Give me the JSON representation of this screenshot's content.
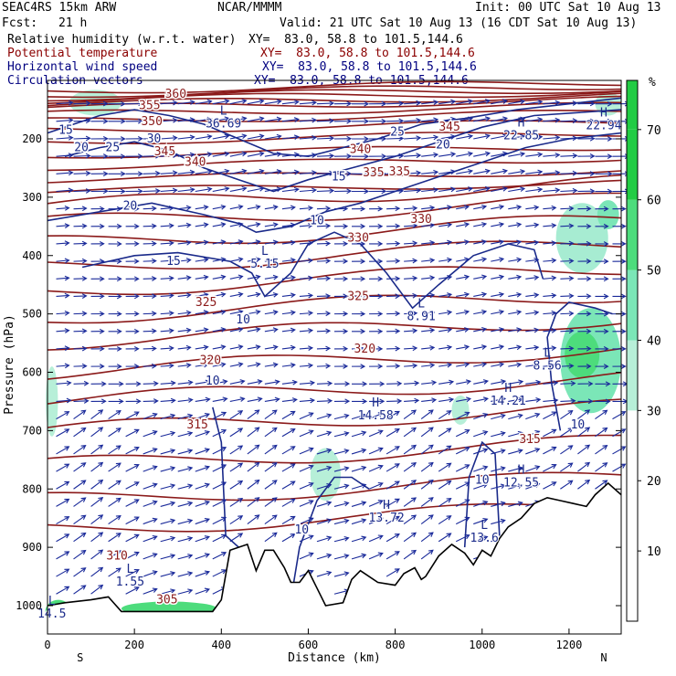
{
  "header": {
    "model": "SEAC4RS 15km ARW",
    "org": "NCAR/MMMM",
    "init": "Init: 00 UTC Sat 10 Aug 13",
    "fcst_label": "Fcst:",
    "fcst_value": "21 h",
    "valid": "Valid: 21 UTC Sat 10 Aug 13 (16 CDT Sat 10 Aug 13)",
    "fields": [
      {
        "name": "Relative humidity (w.r.t. water)",
        "xy": "XY=  83.0, 58.8 to 101.5,144.6",
        "color": "#000000"
      },
      {
        "name": "Potential temperature",
        "xy": "XY=  83.0, 58.8 to 101.5,144.6",
        "color": "#8b0000"
      },
      {
        "name": "Horizontal wind speed",
        "xy": "XY=  83.0, 58.8 to 101.5,144.6",
        "color": "#000080"
      },
      {
        "name": "Circulation vectors",
        "xy": "XY=  83.0, 58.8 to 101.5,144.6",
        "color": "#000080"
      }
    ]
  },
  "chart_data": {
    "type": "heatmap",
    "xlabel": "Distance (km)",
    "ylabel": "Pressure (hPa)",
    "xlim": [
      0,
      1320
    ],
    "ylim": [
      1050,
      100
    ],
    "x_ticks": [
      0,
      200,
      400,
      600,
      800,
      1000,
      1200
    ],
    "y_ticks": [
      200,
      300,
      400,
      500,
      600,
      700,
      800,
      900,
      1000
    ],
    "x_end_labels": {
      "left": "S",
      "right": "N"
    },
    "colorbar": {
      "unit": "%",
      "levels": [
        10,
        20,
        30,
        40,
        50,
        60,
        70
      ],
      "colors": [
        "#ffffff",
        "#ffffff",
        "#ffffff",
        "#b7efd8",
        "#7be6b7",
        "#4ddc7c",
        "#22cc44"
      ]
    },
    "theta_labels": [
      {
        "x": 295,
        "p": 123,
        "text": "360"
      },
      {
        "x": 235,
        "p": 143,
        "text": "355"
      },
      {
        "x": 240,
        "p": 170,
        "text": "350"
      },
      {
        "x": 270,
        "p": 222,
        "text": "345"
      },
      {
        "x": 340,
        "p": 240,
        "text": "340"
      },
      {
        "x": 720,
        "p": 218,
        "text": "340"
      },
      {
        "x": 750,
        "p": 258,
        "text": "335"
      },
      {
        "x": 810,
        "p": 256,
        "text": "335"
      },
      {
        "x": 860,
        "p": 338,
        "text": "330"
      },
      {
        "x": 715,
        "p": 370,
        "text": "330"
      },
      {
        "x": 365,
        "p": 480,
        "text": "325"
      },
      {
        "x": 715,
        "p": 470,
        "text": "325"
      },
      {
        "x": 375,
        "p": 580,
        "text": "320"
      },
      {
        "x": 730,
        "p": 560,
        "text": "320"
      },
      {
        "x": 345,
        "p": 690,
        "text": "315"
      },
      {
        "x": 1110,
        "p": 715,
        "text": "315"
      },
      {
        "x": 160,
        "p": 915,
        "text": "310"
      },
      {
        "x": 275,
        "p": 990,
        "text": "305"
      },
      {
        "x": 925,
        "p": 180,
        "text": "345"
      }
    ],
    "wind_labels": [
      {
        "x": 42,
        "p": 185,
        "text": "15"
      },
      {
        "x": 78,
        "p": 215,
        "text": "20"
      },
      {
        "x": 150,
        "p": 215,
        "text": "25"
      },
      {
        "x": 245,
        "p": 200,
        "text": "30"
      },
      {
        "x": 190,
        "p": 315,
        "text": "20"
      },
      {
        "x": 290,
        "p": 410,
        "text": "15"
      },
      {
        "x": 805,
        "p": 188,
        "text": "25"
      },
      {
        "x": 910,
        "p": 210,
        "text": "20"
      },
      {
        "x": 670,
        "p": 265,
        "text": "15"
      },
      {
        "x": 620,
        "p": 340,
        "text": "10"
      },
      {
        "x": 450,
        "p": 510,
        "text": "10"
      },
      {
        "x": 380,
        "p": 615,
        "text": "10"
      },
      {
        "x": 585,
        "p": 870,
        "text": "10"
      },
      {
        "x": 1000,
        "p": 785,
        "text": "10"
      },
      {
        "x": 1220,
        "p": 690,
        "text": "10"
      }
    ],
    "extrema": [
      {
        "x": 405,
        "p": 165,
        "type": "L",
        "value": "36.69"
      },
      {
        "x": 500,
        "p": 405,
        "type": "L",
        "value": "5.15"
      },
      {
        "x": 860,
        "p": 495,
        "type": "L",
        "value": "8.91"
      },
      {
        "x": 1150,
        "p": 580,
        "type": "L",
        "value": "8.56"
      },
      {
        "x": 755,
        "p": 665,
        "type": "H",
        "value": "14.58"
      },
      {
        "x": 1060,
        "p": 640,
        "type": "H",
        "value": "14.21"
      },
      {
        "x": 1090,
        "p": 780,
        "type": "H",
        "value": "12.55"
      },
      {
        "x": 780,
        "p": 840,
        "type": "H",
        "value": "13.72"
      },
      {
        "x": 1005,
        "p": 875,
        "type": "L",
        "value": "13.6"
      },
      {
        "x": 190,
        "p": 950,
        "type": "L",
        "value": "1.55"
      },
      {
        "x": 1090,
        "p": 185,
        "type": "H",
        "value": "22.85"
      },
      {
        "x": 1280,
        "p": 168,
        "type": "H",
        "value": "22.94"
      },
      {
        "x": 10,
        "p": 1005,
        "type": "L",
        "value": "14.5"
      }
    ]
  }
}
